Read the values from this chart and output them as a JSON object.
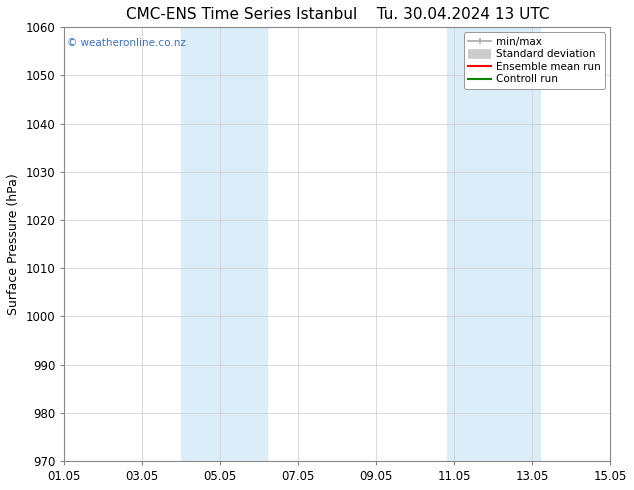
{
  "title": "CMC-ENS Time Series Istanbul",
  "title_right": "Tu. 30.04.2024 13 UTC",
  "ylabel": "Surface Pressure (hPa)",
  "ylim": [
    970,
    1060
  ],
  "yticks": [
    970,
    980,
    990,
    1000,
    1010,
    1020,
    1030,
    1040,
    1050,
    1060
  ],
  "xlim": [
    0,
    14
  ],
  "xtick_labels": [
    "01.05",
    "03.05",
    "05.05",
    "07.05",
    "09.05",
    "11.05",
    "13.05",
    "15.05"
  ],
  "xtick_positions": [
    0,
    2,
    4,
    6,
    8,
    10,
    12,
    14
  ],
  "shaded_bands": [
    {
      "x_start": 3.0,
      "x_end": 5.2,
      "color": "#daedf8"
    },
    {
      "x_start": 9.8,
      "x_end": 12.2,
      "color": "#daedf8"
    }
  ],
  "watermark": "© weatheronline.co.nz",
  "watermark_color": "#3a6fcb",
  "background_color": "#ffffff",
  "legend_items": [
    {
      "label": "min/max",
      "color": "#aaaaaa",
      "type": "minmax"
    },
    {
      "label": "Standard deviation",
      "color": "#cccccc",
      "type": "band"
    },
    {
      "label": "Ensemble mean run",
      "color": "#ff0000",
      "type": "line"
    },
    {
      "label": "Controll run",
      "color": "#008800",
      "type": "line"
    }
  ],
  "grid_color": "#cccccc",
  "title_fontsize": 11,
  "axis_fontsize": 9,
  "tick_fontsize": 8.5
}
